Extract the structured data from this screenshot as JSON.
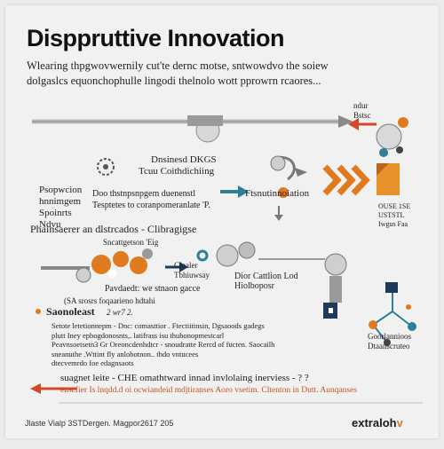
{
  "title": "Disppruttive Innovation",
  "lead": {
    "line1": "Wlearing thpgwovwernily cut'te dernc motse, sntwowdvo the soiew",
    "line2": "dolgaslcs equonchophulle lingodi thelnolo wott pprowrn rcaores..."
  },
  "top_right_caption": [
    "ndur",
    "Bstsc"
  ],
  "center_block": {
    "label1": "Dnsinesd DKGS",
    "label2": "Tcuu Coithdichiing"
  },
  "left_block": [
    "Psopwcion",
    "hnnimgem",
    "Spoinrts",
    "Ndvu"
  ],
  "mid_block": {
    "line1": "Doo thstnpsnpgem duenenstl",
    "line2": "Tesptetes to coranpomeranlate 'P."
  },
  "right_label": "Ftsnutinnoiation",
  "right_caption": [
    "OUSE 1SE",
    "USTSTL",
    "Iwgus Faa"
  ],
  "section2": {
    "heading": "Phainsaerer an dlstrcados - Clibragigse",
    "sub": "Sncattgetson 'Eig"
  },
  "cluster_labels": {
    "a1": "Cloaler",
    "a2": "Tbhiuwsay",
    "b1": "Dior Cattlion Lod",
    "b2": "Hiolboposr",
    "c1": "Pavdaedt: we stnaon gacce",
    "c2": "(SA srosrs foqaarieno hdtahi"
  },
  "section3": {
    "heading": "Saonoleast",
    "tag": "2 wr7 2.",
    "bullet1": "Setote letetionnepm - Dnc: comasttior . Ftectiitinsin, Dgsaoods gadegs",
    "bullet2": "plutt Iney epbogdonosnts,. latifrass isu thubonopmestcarl",
    "bullet3": "Peavnsoetsetn3 Gr  Oreoncdenhdtcr - snoudratte Rercd of fucten. Saocailh",
    "bullet4": "sneanuthe .Wttint fly anlobotnon..  thdo vntucees",
    "bullet5": "dtecvemrdo foe edagnsaots"
  },
  "bottom_right_caption": [
    "Goorlannioos",
    "Dtaanscruteo"
  ],
  "footer_band": {
    "line1": "suagnet leite - CHE omathtward innad invlolaing inerviess - ? ?",
    "line2": "enscfier Is  lnqdd.d oi ocwiandeid mdjtiranses Aoro vsetim.  Cltenton in Dutt. Aunqanses"
  },
  "footer_note": "Jlaste Vialp 3STDergen. Magpor2617 205",
  "brand": {
    "name": "extraloh",
    "suffix": "v"
  },
  "colors": {
    "accent_orange": "#e07a1e",
    "accent_teal": "#2f7f96",
    "arrow_red": "#d2492a",
    "navy": "#1e3a5a"
  }
}
